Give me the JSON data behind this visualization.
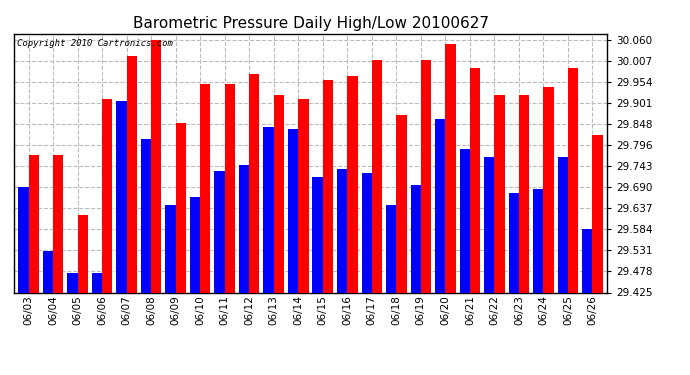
{
  "title": "Barometric Pressure Daily High/Low 20100627",
  "copyright": "Copyright 2010 Cartronics.com",
  "dates": [
    "06/03",
    "06/04",
    "06/05",
    "06/06",
    "06/07",
    "06/08",
    "06/09",
    "06/10",
    "06/11",
    "06/12",
    "06/13",
    "06/14",
    "06/15",
    "06/16",
    "06/17",
    "06/18",
    "06/19",
    "06/20",
    "06/21",
    "06/22",
    "06/23",
    "06/24",
    "06/25",
    "06/26"
  ],
  "highs": [
    29.77,
    29.77,
    29.62,
    29.91,
    30.02,
    30.06,
    29.85,
    29.95,
    29.95,
    29.975,
    29.92,
    29.91,
    29.96,
    29.97,
    30.01,
    29.87,
    30.01,
    30.05,
    29.99,
    29.92,
    29.92,
    29.94,
    29.99,
    29.82
  ],
  "lows": [
    29.69,
    29.53,
    29.475,
    29.475,
    29.905,
    29.81,
    29.645,
    29.665,
    29.73,
    29.745,
    29.84,
    29.835,
    29.715,
    29.735,
    29.725,
    29.645,
    29.695,
    29.86,
    29.785,
    29.765,
    29.675,
    29.685,
    29.765,
    29.585
  ],
  "high_color": "#ff0000",
  "low_color": "#0000ff",
  "bg_color": "#ffffff",
  "yticks": [
    29.425,
    29.478,
    29.531,
    29.584,
    29.637,
    29.69,
    29.743,
    29.796,
    29.848,
    29.901,
    29.954,
    30.007,
    30.06
  ],
  "ylim_min": 29.425,
  "ylim_max": 30.075,
  "grid_color": "#bbbbbb",
  "title_fontsize": 11,
  "tick_fontsize": 7.5,
  "bar_width": 0.42
}
